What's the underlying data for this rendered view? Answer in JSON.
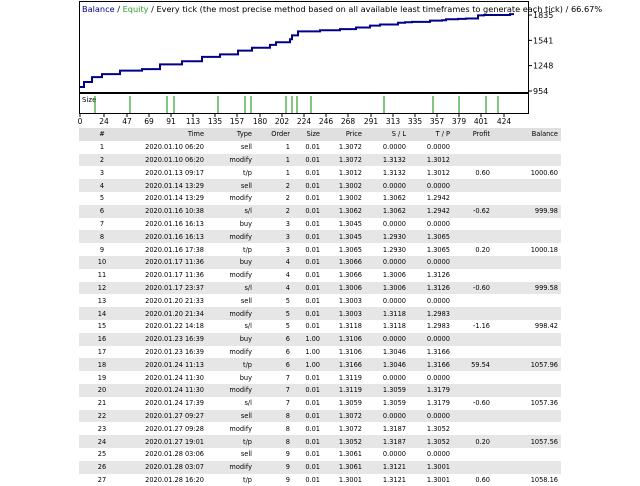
{
  "chart_header": {
    "balance": "Balance",
    "sep1": " / ",
    "equity": "Equity",
    "rest": " / Every tick (the most precise method based on all available least timeframes to generate each tick) / 66.67%"
  },
  "size_label": "Size",
  "colors": {
    "balance_line": "#00008b",
    "equity_line": "#2ea02e",
    "size_bar": "#2ea02e",
    "grid": "#000000",
    "row_stripe": "#e6e6e6",
    "header_bg": "#e0e0e0"
  },
  "chart_data": {
    "type": "line",
    "title": "Balance / Equity / Every tick (the most precise method based on all available least timeframes to generate each tick) / 66.67%",
    "x_ticks": [
      0,
      24,
      47,
      69,
      91,
      113,
      135,
      157,
      180,
      202,
      224,
      246,
      268,
      291,
      313,
      335,
      357,
      379,
      401,
      424
    ],
    "y_ticks": [
      954,
      1248,
      1541,
      1835
    ],
    "ylim": [
      954,
      1835
    ],
    "xlim": [
      0,
      433
    ],
    "series": [
      {
        "key": "balance",
        "x": [
          0,
          4,
          4,
          12,
          12,
          22,
          22,
          40,
          40,
          62,
          62,
          80,
          80,
          102,
          102,
          122,
          122,
          140,
          140,
          158,
          158,
          172,
          172,
          190,
          190,
          196,
          196,
          210,
          210,
          212,
          212,
          218,
          218,
          240,
          240,
          260,
          260,
          276,
          276,
          290,
          290,
          300,
          300,
          318,
          318,
          325,
          325,
          332,
          332,
          350,
          350,
          362,
          362,
          366,
          366,
          378,
          378,
          386,
          386,
          398,
          398,
          404,
          404,
          430,
          430,
          434
        ],
        "y": [
          1000,
          1000,
          1058,
          1058,
          1115,
          1115,
          1150,
          1150,
          1190,
          1190,
          1208,
          1208,
          1262,
          1262,
          1298,
          1298,
          1349,
          1349,
          1378,
          1378,
          1422,
          1422,
          1455,
          1455,
          1488,
          1488,
          1520,
          1520,
          1553,
          1553,
          1598,
          1598,
          1645,
          1645,
          1658,
          1658,
          1671,
          1671,
          1690,
          1690,
          1712,
          1712,
          1725,
          1725,
          1745,
          1745,
          1750,
          1750,
          1755,
          1755,
          1770,
          1770,
          1773,
          1773,
          1785,
          1785,
          1790,
          1790,
          1795,
          1795,
          1830,
          1830,
          1835,
          1835,
          1845,
          1845
        ]
      }
    ],
    "size_x": [
      15,
      50,
      87,
      94,
      138,
      165,
      171,
      206,
      212,
      217,
      231,
      304,
      353,
      379,
      406,
      418
    ]
  },
  "table": {
    "columns": [
      "#",
      "Time",
      "Type",
      "Order",
      "Size",
      "Price",
      "S / L",
      "T / P",
      "Profit",
      "Balance"
    ],
    "rows": [
      [
        "1",
        "2020.01.10 06:20",
        "sell",
        "1",
        "0.01",
        "1.3072",
        "0.0000",
        "0.0000",
        "",
        ""
      ],
      [
        "2",
        "2020.01.10 06:20",
        "modify",
        "1",
        "0.01",
        "1.3072",
        "1.3132",
        "1.3012",
        "",
        ""
      ],
      [
        "3",
        "2020.01.13 09:17",
        "t/p",
        "1",
        "0.01",
        "1.3012",
        "1.3132",
        "1.3012",
        "0.60",
        "1000.60"
      ],
      [
        "4",
        "2020.01.14 13:29",
        "sell",
        "2",
        "0.01",
        "1.3002",
        "0.0000",
        "0.0000",
        "",
        ""
      ],
      [
        "5",
        "2020.01.14 13:29",
        "modify",
        "2",
        "0.01",
        "1.3002",
        "1.3062",
        "1.2942",
        "",
        ""
      ],
      [
        "6",
        "2020.01.16 10:38",
        "s/l",
        "2",
        "0.01",
        "1.3062",
        "1.3062",
        "1.2942",
        "-0.62",
        "999.98"
      ],
      [
        "7",
        "2020.01.16 16:13",
        "buy",
        "3",
        "0.01",
        "1.3045",
        "0.0000",
        "0.0000",
        "",
        ""
      ],
      [
        "8",
        "2020.01.16 16:13",
        "modify",
        "3",
        "0.01",
        "1.3045",
        "1.2930",
        "1.3065",
        "",
        ""
      ],
      [
        "9",
        "2020.01.16 17:38",
        "t/p",
        "3",
        "0.01",
        "1.3065",
        "1.2930",
        "1.3065",
        "0.20",
        "1000.18"
      ],
      [
        "10",
        "2020.01.17 11:36",
        "buy",
        "4",
        "0.01",
        "1.3066",
        "0.0000",
        "0.0000",
        "",
        ""
      ],
      [
        "11",
        "2020.01.17 11:36",
        "modify",
        "4",
        "0.01",
        "1.3066",
        "1.3006",
        "1.3126",
        "",
        ""
      ],
      [
        "12",
        "2020.01.17 23:37",
        "s/l",
        "4",
        "0.01",
        "1.3006",
        "1.3006",
        "1.3126",
        "-0.60",
        "999.58"
      ],
      [
        "13",
        "2020.01.20 21:33",
        "sell",
        "5",
        "0.01",
        "1.3003",
        "0.0000",
        "0.0000",
        "",
        ""
      ],
      [
        "14",
        "2020.01.20 21:34",
        "modify",
        "5",
        "0.01",
        "1.3003",
        "1.3118",
        "1.2983",
        "",
        ""
      ],
      [
        "15",
        "2020.01.22 14:18",
        "s/l",
        "5",
        "0.01",
        "1.3118",
        "1.3118",
        "1.2983",
        "-1.16",
        "998.42"
      ],
      [
        "16",
        "2020.01.23 16:39",
        "buy",
        "6",
        "1.00",
        "1.3106",
        "0.0000",
        "0.0000",
        "",
        ""
      ],
      [
        "17",
        "2020.01.23 16:39",
        "modify",
        "6",
        "1.00",
        "1.3106",
        "1.3046",
        "1.3166",
        "",
        ""
      ],
      [
        "18",
        "2020.01.24 11:13",
        "t/p",
        "6",
        "1.00",
        "1.3166",
        "1.3046",
        "1.3166",
        "59.54",
        "1057.96"
      ],
      [
        "19",
        "2020.01.24 11:30",
        "buy",
        "7",
        "0.01",
        "1.3119",
        "0.0000",
        "0.0000",
        "",
        ""
      ],
      [
        "20",
        "2020.01.24 11:30",
        "modify",
        "7",
        "0.01",
        "1.3119",
        "1.3059",
        "1.3179",
        "",
        ""
      ],
      [
        "21",
        "2020.01.24 17:39",
        "s/l",
        "7",
        "0.01",
        "1.3059",
        "1.3059",
        "1.3179",
        "-0.60",
        "1057.36"
      ],
      [
        "22",
        "2020.01.27 09:27",
        "sell",
        "8",
        "0.01",
        "1.3072",
        "0.0000",
        "0.0000",
        "",
        ""
      ],
      [
        "23",
        "2020.01.27 09:28",
        "modify",
        "8",
        "0.01",
        "1.3072",
        "1.3187",
        "1.3052",
        "",
        ""
      ],
      [
        "24",
        "2020.01.27 19:01",
        "t/p",
        "8",
        "0.01",
        "1.3052",
        "1.3187",
        "1.3052",
        "0.20",
        "1057.56"
      ],
      [
        "25",
        "2020.01.28 03:06",
        "sell",
        "9",
        "0.01",
        "1.3061",
        "0.0000",
        "0.0000",
        "",
        ""
      ],
      [
        "26",
        "2020.01.28 03:07",
        "modify",
        "9",
        "0.01",
        "1.3061",
        "1.3121",
        "1.3001",
        "",
        ""
      ],
      [
        "27",
        "2020.01.28 16:20",
        "t/p",
        "9",
        "0.01",
        "1.3001",
        "1.3121",
        "1.3001",
        "0.60",
        "1058.16"
      ]
    ]
  }
}
